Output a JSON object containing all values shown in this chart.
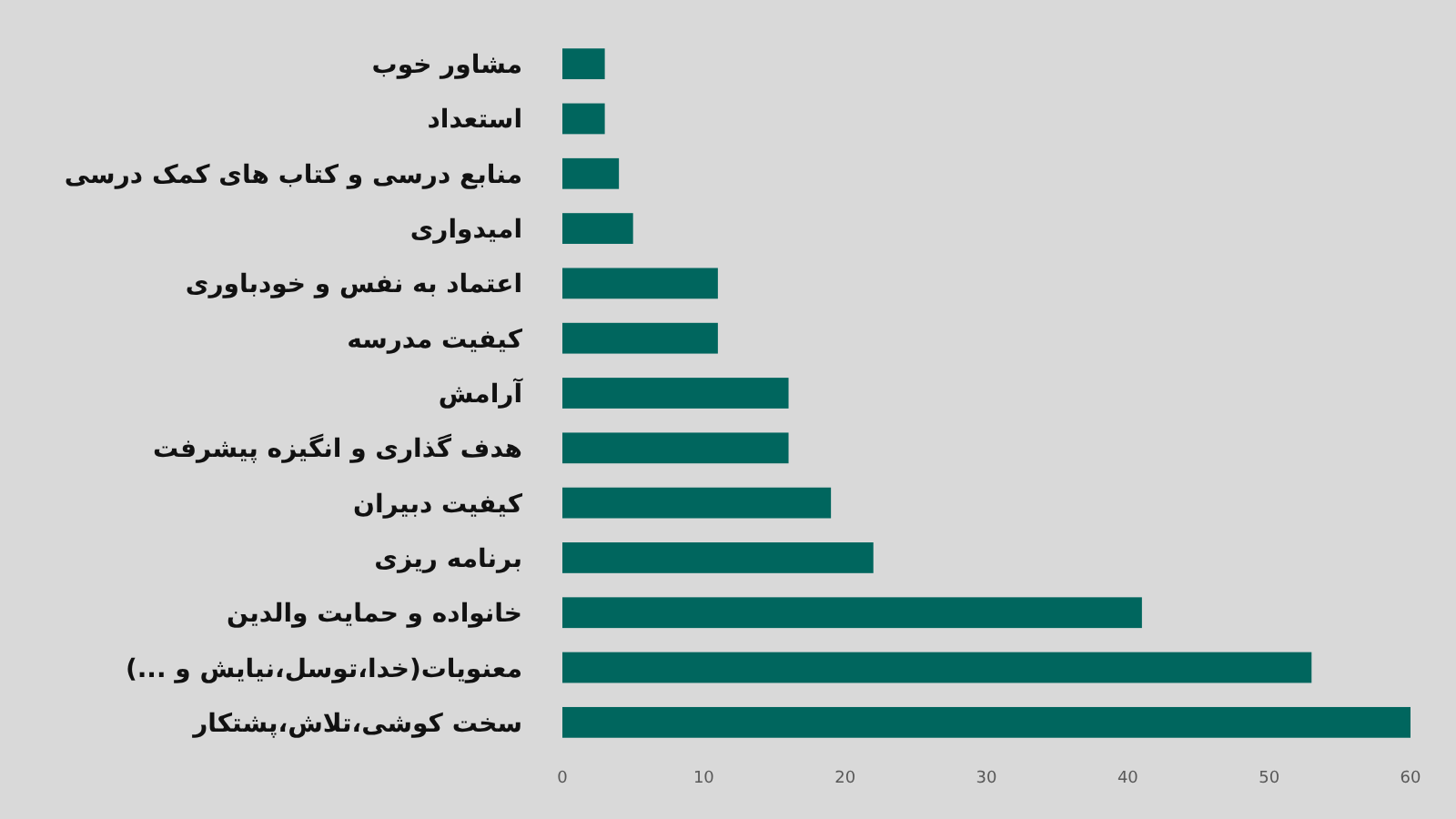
{
  "chart_data": {
    "type": "bar",
    "orientation": "horizontal",
    "categories": [
      "مشاور خوب",
      "استعداد",
      "منابع درسی و کتاب های کمک درسی",
      "امیدواری",
      "اعتماد به نفس و خودباوری",
      "کیفیت مدرسه",
      "آرامش",
      "هدف گذاری و انگیزه پیشرفت",
      "کیفیت دبیران",
      "برنامه ریزی",
      "خانواده و حمایت والدین",
      "معنویات(خدا،توسل،نیایش و ...)",
      "سخت کوشی،تلاش،پشتکار"
    ],
    "values": [
      3,
      3,
      4,
      5,
      11,
      11,
      16,
      16,
      19,
      22,
      41,
      53,
      60
    ],
    "color": "#00665e",
    "xlim": [
      0,
      60
    ],
    "xticks": [
      0,
      10,
      20,
      30,
      40,
      50,
      60
    ],
    "grid": false
  }
}
